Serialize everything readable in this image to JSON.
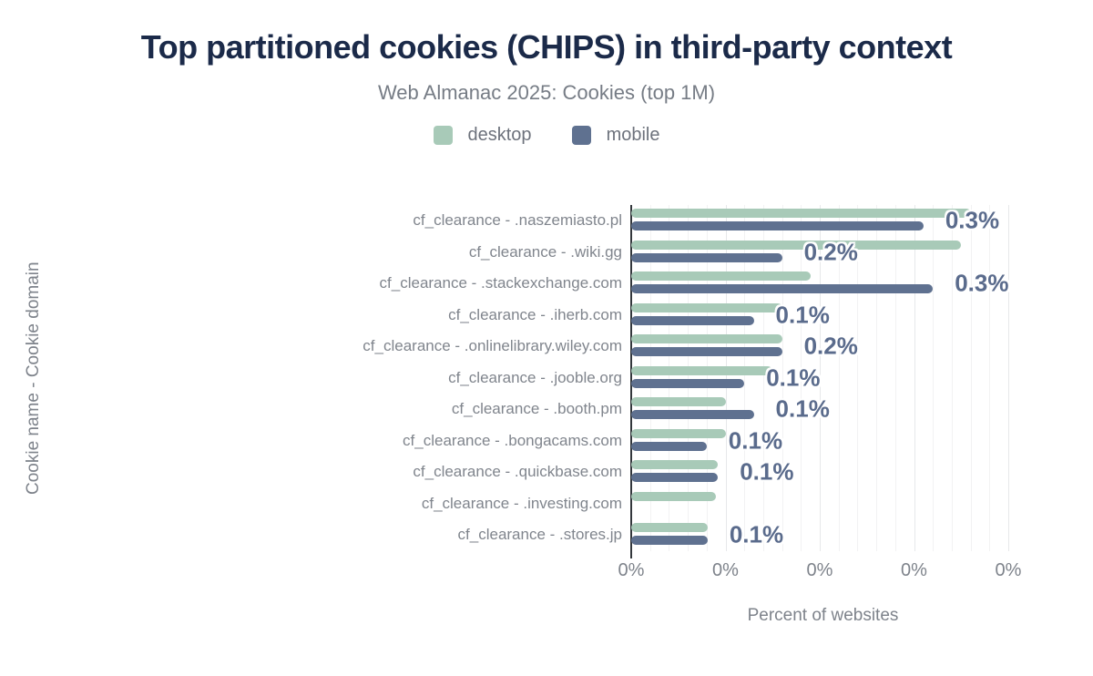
{
  "chart": {
    "title": "Top partitioned cookies (CHIPS) in third-party context",
    "subtitle": "Web Almanac 2025: Cookies (top 1M)",
    "x_axis_title": "Percent of websites",
    "y_axis_title": "Cookie name - Cookie domain",
    "legend": [
      {
        "name": "desktop",
        "color": "#a8cab8"
      },
      {
        "name": "mobile",
        "color": "#5f7190"
      }
    ]
  },
  "colors": {
    "title": "#1b2a49",
    "subtitle": "#767c85",
    "axis_text": "#7e838b",
    "data_label": "#5a6b8c",
    "desktop_series": "#a8cab8",
    "mobile_series": "#5f7190",
    "axis_line": "#33373c"
  },
  "chart_data": {
    "type": "bar",
    "orientation": "horizontal",
    "title": "Top partitioned cookies (CHIPS) in third-party context",
    "subtitle": "Web Almanac 2025: Cookies (top 1M)",
    "xlabel": "Percent of websites",
    "ylabel": "Cookie name - Cookie domain",
    "categories": [
      "cf_clearance - .naszemiasto.pl",
      "cf_clearance - .wiki.gg",
      "cf_clearance - .stackexchange.com",
      "cf_clearance - .iherb.com",
      "cf_clearance - .onlinelibrary.wiley.com",
      "cf_clearance - .jooble.org",
      "cf_clearance - .booth.pm",
      "cf_clearance - .bongacams.com",
      "cf_clearance - .quickbase.com",
      "cf_clearance - .investing.com",
      "cf_clearance - .stores.jp"
    ],
    "series": [
      {
        "name": "desktop",
        "values": [
          0.36,
          0.35,
          0.19,
          0.16,
          0.16,
          0.15,
          0.1,
          0.1,
          0.092,
          0.09,
          0.081
        ]
      },
      {
        "name": "mobile",
        "values": [
          0.31,
          0.16,
          0.32,
          0.13,
          0.16,
          0.12,
          0.13,
          0.08,
          0.092,
          null,
          0.081
        ]
      }
    ],
    "data_labels": [
      "0.3%",
      "0.2%",
      "0.3%",
      "0.1%",
      "0.2%",
      "0.1%",
      "0.1%",
      "0.1%",
      "0.1%",
      "",
      "0.1%"
    ],
    "data_label_series": "mobile",
    "x_ticks": [
      "0%",
      "0%",
      "0%",
      "0%",
      "0%"
    ],
    "x_tick_values": [
      0,
      0.1,
      0.2,
      0.3,
      0.4
    ],
    "xlim": [
      0,
      0.41
    ],
    "grid": true,
    "legend_position": "top"
  }
}
